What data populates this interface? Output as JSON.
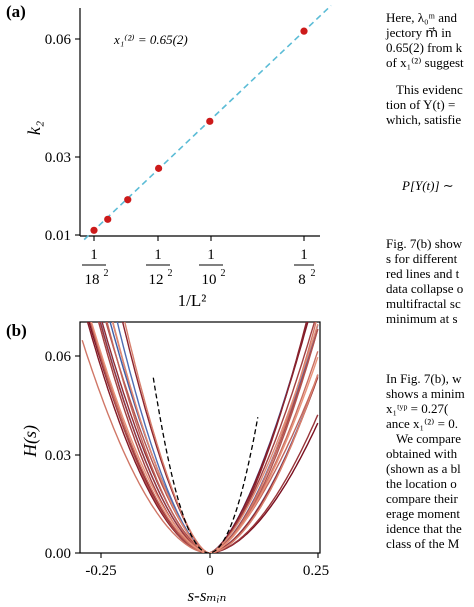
{
  "panel_a": {
    "label": "(a)",
    "annotation": "x₁⁽²⁾ = 0.65(2)",
    "ylabel": "k₂",
    "xlabel": "1/L²"
  },
  "panel_b": {
    "label": "(b)",
    "ylabel": "H(s)",
    "xlabel": "s-sₘᵢₙ"
  },
  "colors": {
    "marker": "#cc1a1a",
    "fit": "#5bbcd6",
    "dark_red": "#7a1020",
    "salmon": "#e8937a",
    "blue": "#3d5ea8"
  },
  "chart_data": [
    {
      "type": "scatter",
      "panel": "(a)",
      "ylabel": "k₂",
      "xlabel": "1/L²",
      "xscale": "1/L^2",
      "ylim": [
        0.01,
        0.066
      ],
      "yticks": [
        0.01,
        0.03,
        0.06
      ],
      "ytick_labels": [
        "0.01",
        "0.03",
        "0.06"
      ],
      "xticks_L": [
        18,
        12,
        10,
        8
      ],
      "x_L": [
        18,
        16,
        14,
        12,
        10,
        8
      ],
      "y": [
        0.0112,
        0.014,
        0.019,
        0.027,
        0.039,
        0.062
      ],
      "fit_line": true,
      "grid": false
    },
    {
      "type": "line",
      "panel": "(b)",
      "ylabel": "H(s)",
      "xlabel": "s-sₘᵢₙ",
      "xlim": [
        -0.29,
        0.25
      ],
      "ylim": [
        0.0,
        0.07
      ],
      "xticks": [
        -0.25,
        0,
        0.25
      ],
      "xtick_labels": [
        "-0.25",
        "0",
        "0.25"
      ],
      "yticks": [
        0.0,
        0.03,
        0.06
      ],
      "ytick_labels": [
        "0.00",
        "0.03",
        "0.06"
      ],
      "series_count_approx": 18,
      "dashed_reference": true,
      "grid": false
    }
  ],
  "right_text": {
    "p1": [
      "Here, λ₀ᵐ and",
      "jectory m⃗ in",
      "0.65(2) from k",
      "of x₁⁽²⁾ suggest"
    ],
    "p2": [
      "This evidenc",
      "tion of Y(t) =",
      "which, satisfie"
    ],
    "eq": "P[Y(t)] ∼",
    "p3": [
      "Fig. 7(b) show",
      "s for different",
      "red lines and t",
      "data collapse o",
      "multifractal sc",
      "minimum at s"
    ],
    "p4": [
      "In Fig. 7(b), w",
      "shows a minim",
      "x₁ᵗʸᵖ = 0.27(",
      "ance x₁⁽²⁾ = 0.",
      "We compare",
      "obtained with",
      "(shown as a bl",
      "the location o",
      "compare their",
      "erage moment",
      "idence that the",
      "class of the M"
    ]
  }
}
